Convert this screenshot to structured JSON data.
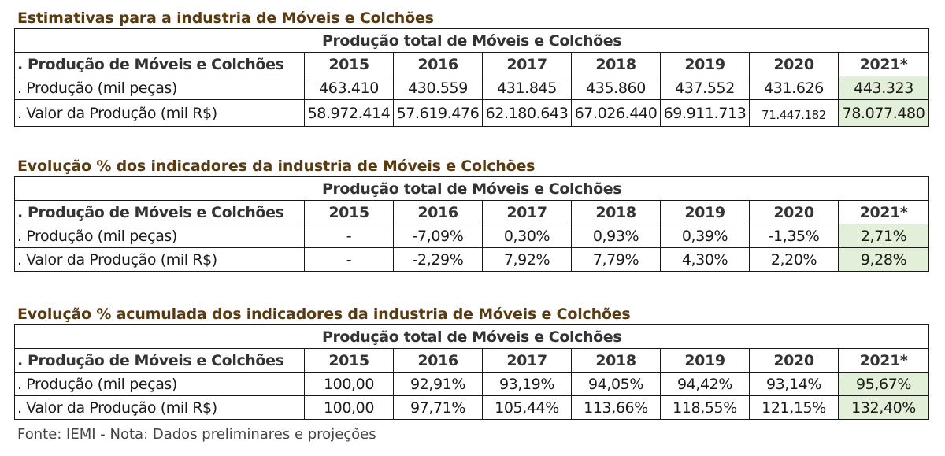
{
  "sections": [
    {
      "title": "Estimativas para a industria de Móveis e Colchões",
      "group_header": "Produção total de Móveis e Colchões",
      "header_label": ". Produção de Móveis e Colchões",
      "years": [
        "2015",
        "2016",
        "2017",
        "2018",
        "2019",
        "2020",
        "2021*"
      ],
      "rows": [
        {
          "label": ". Produção (mil peças)",
          "values": [
            "463.410",
            "430.559",
            "431.845",
            "435.860",
            "437.552",
            "431.626",
            "443.323"
          ]
        },
        {
          "label": ". Valor da Produção (mil R$)",
          "values": [
            "58.972.414",
            "57.619.476",
            "62.180.643",
            "67.026.440",
            "69.911.713",
            "71.447.182",
            "78.077.480"
          ]
        }
      ]
    },
    {
      "title": "Evolução % dos indicadores da industria de Móveis e Colchões",
      "group_header": "Produção total de Móveis e Colchões",
      "header_label": ". Produção de Móveis e Colchões",
      "years": [
        "2015",
        "2016",
        "2017",
        "2018",
        "2019",
        "2020",
        "2021*"
      ],
      "rows": [
        {
          "label": ". Produção (mil peças)",
          "values": [
            "-",
            "-7,09%",
            "0,30%",
            "0,93%",
            "0,39%",
            "-1,35%",
            "2,71%"
          ]
        },
        {
          "label": ". Valor da Produção (mil R$)",
          "values": [
            "-",
            "-2,29%",
            "7,92%",
            "7,79%",
            "4,30%",
            "2,20%",
            "9,28%"
          ]
        }
      ]
    },
    {
      "title": "Evolução % acumulada dos indicadores da industria de Móveis e Colchões",
      "group_header": "Produção total de Móveis e Colchões",
      "header_label": ". Produção de Móveis e Colchões",
      "years": [
        "2015",
        "2016",
        "2017",
        "2018",
        "2019",
        "2020",
        "2021*"
      ],
      "rows": [
        {
          "label": ". Produção (mil peças)",
          "values": [
            "100,00",
            "92,91%",
            "93,19%",
            "94,05%",
            "94,42%",
            "93,14%",
            "95,67%"
          ]
        },
        {
          "label": ". Valor da Produção (mil R$)",
          "values": [
            "100,00",
            "97,71%",
            "105,44%",
            "113,66%",
            "118,55%",
            "121,15%",
            "132,40%"
          ]
        }
      ]
    }
  ],
  "source_note": "Fonte: IEMI - Nota: Dados preliminares e projeções",
  "colors": {
    "title": "#5a3a10",
    "highlight": "#e2efd9",
    "border": "#1a1a1a"
  }
}
